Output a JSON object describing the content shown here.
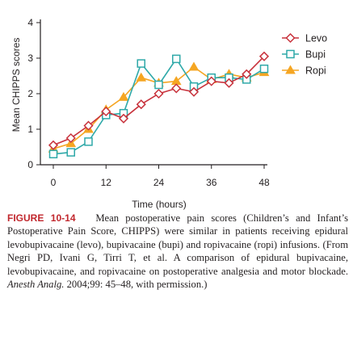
{
  "chart_data": {
    "type": "line",
    "ylabel": "Mean CHIPPS scores",
    "xlabel": "Time (hours)",
    "xlim": [
      0,
      48
    ],
    "ylim": [
      0,
      4
    ],
    "x_ticks": [
      0,
      12,
      24,
      36,
      48
    ],
    "y_ticks": [
      0,
      1,
      2,
      3,
      4
    ],
    "legend_position": "top-right",
    "series": [
      {
        "name": "Levo",
        "color": "#c8323c",
        "marker": "diamond",
        "x": [
          0,
          4,
          8,
          12,
          16,
          20,
          24,
          28,
          32,
          36,
          40,
          44,
          48
        ],
        "y": [
          0.55,
          0.75,
          1.1,
          1.5,
          1.3,
          1.7,
          2.0,
          2.15,
          2.05,
          2.35,
          2.3,
          2.55,
          3.05
        ]
      },
      {
        "name": "Bupi",
        "color": "#2fa9a9",
        "marker": "square",
        "x": [
          0,
          4,
          8,
          12,
          16,
          20,
          24,
          28,
          32,
          36,
          40,
          44,
          48
        ],
        "y": [
          0.3,
          0.35,
          0.65,
          1.4,
          1.45,
          2.85,
          2.25,
          2.98,
          2.2,
          2.45,
          2.45,
          2.4,
          2.7
        ]
      },
      {
        "name": "Ropi",
        "color": "#f5a623",
        "marker": "triangle",
        "x": [
          0,
          4,
          8,
          12,
          16,
          20,
          24,
          28,
          32,
          36,
          40,
          44,
          48
        ],
        "y": [
          0.45,
          0.6,
          1.0,
          1.55,
          1.9,
          2.45,
          2.3,
          2.35,
          2.75,
          2.4,
          2.55,
          2.45,
          2.6
        ]
      }
    ]
  },
  "caption": {
    "figure_label": "FIGURE 10-14",
    "text_main": "Mean postoperative pain scores (Children’s and Infant’s Postoperative Pain Score, CHIPPS) were similar in patients receiving epidural levobupivacaine (levo), bupivacaine (bupi) and ropivacaine (ropi) infusions. (From Negri PD, Ivani G, Tirri T, et al. A comparison of epidural bupivacaine, levobupivacaine, and ropivacaine on postoperative analgesia and motor blockade.",
    "journal": "Anesth Analg.",
    "text_end": "2004;99: 45–48, with permission.)"
  }
}
